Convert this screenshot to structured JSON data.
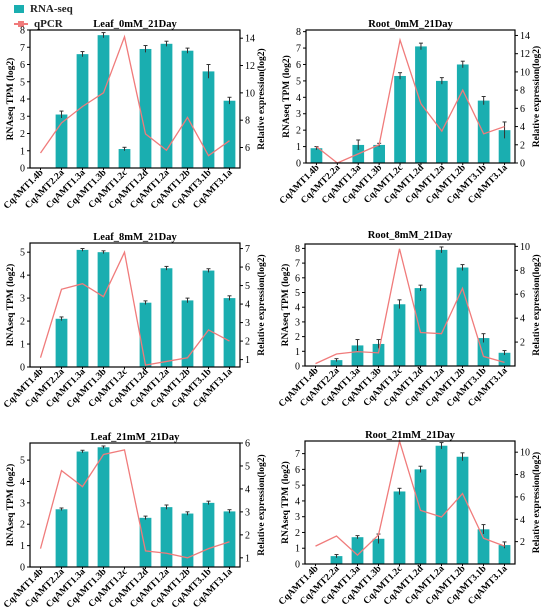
{
  "legend": {
    "bar_label": "RNA-seq",
    "line_label": "qPCR"
  },
  "colors": {
    "bar": "#1aaeb0",
    "line": "#f07b7b",
    "axis": "#000000"
  },
  "chart_data": [
    {
      "type": "bar",
      "title": "Leaf_0mM_21Day",
      "ylabel": "RNAseq TPM (log2)",
      "y2label": "Relative expression(log2)",
      "categories": [
        "CqAMT1.4b",
        "CqAMT2.2a",
        "CqAMT1.3a",
        "CqAMT1.3b",
        "CqAMT1.2c",
        "CqAMT1.2d",
        "CqAMT1.2a",
        "CqAMT1.2b",
        "CqAMT3.1b",
        "CqAMT3.1a"
      ],
      "ylim": [
        0,
        8
      ],
      "yticks": [
        0,
        1,
        2,
        3,
        4,
        5,
        6,
        7,
        8
      ],
      "y2lim": [
        4.5,
        14.6
      ],
      "y2ticks": [
        6,
        8,
        10,
        12,
        14
      ],
      "bars": [
        null,
        3.1,
        6.6,
        7.7,
        1.1,
        6.9,
        7.2,
        6.8,
        5.6,
        3.9
      ],
      "errors": [
        0,
        0.2,
        0.15,
        0.15,
        0.1,
        0.2,
        0.15,
        0.15,
        0.4,
        0.2
      ],
      "qpcr": [
        5.6,
        7.8,
        9.0,
        10.0,
        14.1,
        7.0,
        5.8,
        8.2,
        5.4,
        6.5
      ]
    },
    {
      "type": "bar",
      "title": "Root_0mM_21Day",
      "ylabel": "RNAseq TPM (log2)",
      "y2label": "Relative expression(log2)",
      "categories": [
        "CqAMT1.4b",
        "CqAMT2.2a",
        "CqAMT1.3a",
        "CqAMT1.3b",
        "CqAMT1.2c",
        "CqAMT1.2d",
        "CqAMT1.2a",
        "CqAMT1.2b",
        "CqAMT3.1b",
        "CqAMT3.1a"
      ],
      "ylim": [
        0,
        8.1
      ],
      "yticks": [
        0,
        1,
        2,
        3,
        4,
        5,
        6,
        7,
        8
      ],
      "y2lim": [
        0,
        14.6
      ],
      "y2ticks": [
        0,
        2,
        4,
        6,
        8,
        10,
        12,
        14
      ],
      "bars": [
        0.9,
        null,
        1.1,
        1.1,
        5.3,
        7.1,
        5.0,
        6.0,
        3.8,
        2.0
      ],
      "errors": [
        0.1,
        0,
        0.3,
        0.1,
        0.2,
        0.2,
        0.2,
        0.2,
        0.25,
        0.5
      ],
      "qpcr": [
        1.8,
        0.0,
        1.0,
        2.0,
        13.5,
        6.5,
        3.5,
        8.0,
        3.2,
        4.0
      ]
    },
    {
      "type": "bar",
      "title": "Leaf_8mM_21Day",
      "ylabel": "RNAseq TPM (log2)",
      "y2label": "Relative expression(log2)",
      "categories": [
        "CqAMT1.4b",
        "CqAMT2.2a",
        "CqAMT1.3a",
        "CqAMT1.3b",
        "CqAMT1.2c",
        "CqAMT1.2d",
        "CqAMT1.2a",
        "CqAMT1.2b",
        "CqAMT3.1b",
        "CqAMT3.1a"
      ],
      "ylim": [
        0,
        5.4
      ],
      "yticks": [
        0,
        1,
        2,
        3,
        4,
        5
      ],
      "y2lim": [
        0.6,
        7.3
      ],
      "y2ticks": [
        1,
        2,
        3,
        4,
        5,
        6,
        7
      ],
      "bars": [
        null,
        2.1,
        5.1,
        5.0,
        null,
        2.8,
        4.3,
        2.9,
        4.2,
        3.0
      ],
      "errors": [
        0,
        0.08,
        0.06,
        0.06,
        0,
        0.08,
        0.08,
        0.1,
        0.08,
        0.1
      ],
      "qpcr": [
        1.1,
        4.8,
        5.1,
        4.4,
        6.8,
        0.7,
        0.9,
        1.1,
        2.6,
        2.0
      ]
    },
    {
      "type": "bar",
      "title": "Root_8mM_21Day",
      "ylabel": "RNAseq TPM (log2)",
      "y2label": "Relative expression(log2)",
      "categories": [
        "CqAMT1.4b",
        "CqAMT2.2a",
        "CqAMT1.3a",
        "CqAMT1.3b",
        "CqAMT1.2c",
        "CqAMT1.2d",
        "CqAMT1.2a",
        "CqAMT1.2b",
        "CqAMT3.1b",
        "CqAMT3.1a"
      ],
      "ylim": [
        0,
        8.3
      ],
      "yticks": [
        0,
        1,
        2,
        3,
        4,
        5,
        6,
        7,
        8
      ],
      "y2lim": [
        0,
        10.2
      ],
      "y2ticks": [
        2,
        4,
        6,
        8,
        10
      ],
      "bars": [
        null,
        0.4,
        1.4,
        1.5,
        4.2,
        5.3,
        7.9,
        6.7,
        1.9,
        0.9
      ],
      "errors": [
        0,
        0.1,
        0.4,
        0.3,
        0.3,
        0.2,
        0.2,
        0.2,
        0.3,
        0.15
      ],
      "qpcr": [
        0.2,
        1.0,
        1.2,
        1.1,
        9.8,
        2.8,
        2.7,
        6.5,
        0.8,
        0.3
      ]
    },
    {
      "type": "bar",
      "title": "Leaf_21mM_21Day",
      "ylabel": "RNAseq TPM (log2)",
      "y2label": "Relative expression(log2)",
      "categories": [
        "CqAMT1.4b",
        "CqAMT2.2a",
        "CqAMT1.3a",
        "CqAMT1.3b",
        "CqAMT1.2c",
        "CqAMT1.2d",
        "CqAMT1.2a",
        "CqAMT1.2b",
        "CqAMT3.1b",
        "CqAMT3.1a"
      ],
      "ylim": [
        0,
        5.8
      ],
      "yticks": [
        0,
        1,
        2,
        3,
        4,
        5
      ],
      "y2lim": [
        0.6,
        6.0
      ],
      "y2ticks": [
        1,
        2,
        3,
        4,
        5,
        6
      ],
      "bars": [
        null,
        2.7,
        5.4,
        5.6,
        null,
        2.3,
        2.8,
        2.5,
        3.0,
        2.6
      ],
      "errors": [
        0,
        0.06,
        0.06,
        0.06,
        0,
        0.08,
        0.1,
        0.08,
        0.08,
        0.08
      ],
      "qpcr": [
        1.4,
        4.8,
        4.1,
        5.5,
        5.7,
        1.3,
        1.2,
        1.0,
        1.4,
        1.7
      ]
    },
    {
      "type": "bar",
      "title": "Root_21mM_21Day",
      "ylabel": "RNAseq TPM (log2)",
      "y2label": "Relative expression(log2)",
      "categories": [
        "CqAMT1.4b",
        "CqAMT2.2a",
        "CqAMT1.3a",
        "CqAMT1.3b",
        "CqAMT1.2c",
        "CqAMT1.2d",
        "CqAMT1.2a",
        "CqAMT1.2b",
        "CqAMT3.1b",
        "CqAMT3.1a"
      ],
      "ylim": [
        0,
        7.8
      ],
      "yticks": [
        0,
        1,
        2,
        3,
        4,
        5,
        6,
        7
      ],
      "y2lim": [
        0,
        11.0
      ],
      "y2ticks": [
        2,
        4,
        6,
        8,
        10
      ],
      "bars": [
        null,
        0.5,
        1.7,
        1.6,
        4.6,
        6.0,
        7.5,
        6.8,
        2.2,
        1.2
      ],
      "errors": [
        0,
        0.1,
        0.1,
        0.3,
        0.2,
        0.2,
        0.2,
        0.25,
        0.3,
        0.2
      ],
      "qpcr": [
        1.6,
        2.5,
        0.8,
        2.6,
        11.0,
        4.8,
        4.2,
        6.3,
        2.3,
        1.6
      ]
    }
  ]
}
